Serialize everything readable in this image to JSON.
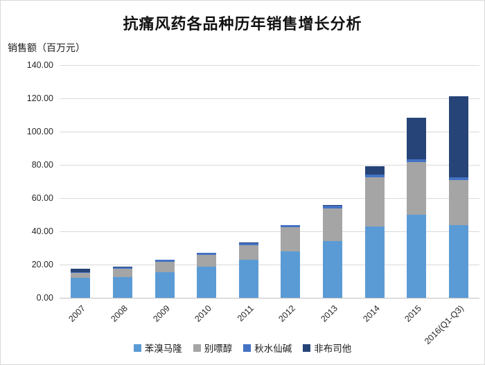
{
  "chart_data": {
    "type": "bar",
    "stacked": true,
    "title": "抗痛风药各品种历年销售增长分析",
    "ylabel": "销售额（百万元）",
    "xlabel": "",
    "ylim": [
      0,
      140
    ],
    "yticks": [
      "0.00",
      "20.00",
      "40.00",
      "60.00",
      "80.00",
      "100.00",
      "120.00",
      "140.00"
    ],
    "grid": true,
    "legend_position": "bottom",
    "categories": [
      "2007",
      "2008",
      "2009",
      "2010",
      "2011",
      "2012",
      "2013",
      "2014",
      "2015",
      "2016(Q1-Q3)"
    ],
    "series": [
      {
        "name": "苯溴马隆",
        "color": "#5B9BD5",
        "values": [
          11.9,
          12.6,
          15.3,
          18.7,
          22.8,
          27.8,
          34.0,
          43.0,
          50.0,
          43.8
        ]
      },
      {
        "name": "别嘌醇",
        "color": "#A5A5A5",
        "values": [
          3.2,
          4.8,
          6.3,
          7.2,
          9.0,
          14.6,
          19.6,
          29.5,
          31.7,
          27.1
        ]
      },
      {
        "name": "秋水仙碱",
        "color": "#4472C4",
        "values": [
          0.5,
          1.0,
          1.2,
          1.0,
          1.2,
          1.2,
          1.7,
          1.7,
          1.7,
          1.7
        ]
      },
      {
        "name": "非布司他",
        "color": "#264478",
        "values": [
          1.9,
          0.4,
          0.0,
          0.0,
          0.2,
          0.0,
          0.5,
          5.0,
          25.0,
          48.6
        ]
      }
    ],
    "totals": [
      17.5,
      18.8,
      22.8,
      26.9,
      33.2,
      43.6,
      55.8,
      79.2,
      108.4,
      121.2
    ]
  },
  "colors": {
    "gridline": "#d9d9d9",
    "axis_text": "#262626",
    "title_text": "#111111",
    "background": "#ffffff"
  }
}
